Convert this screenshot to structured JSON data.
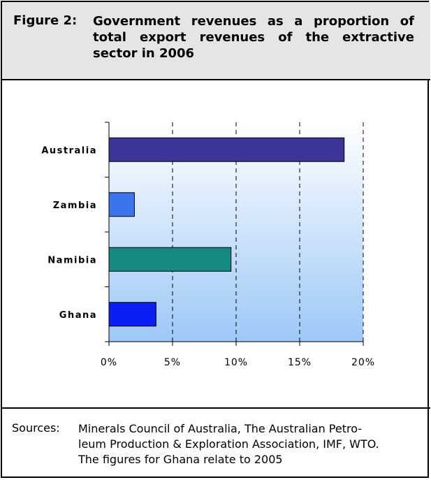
{
  "figure": {
    "label": "Figure 2:",
    "title": "Government revenues as a proportion of total export revenues of the extractive sector in 2006"
  },
  "chart_data": {
    "type": "bar",
    "orientation": "horizontal",
    "categories": [
      "Australia",
      "Zambia",
      "Namibia",
      "Ghana"
    ],
    "values": [
      18.5,
      2.0,
      9.6,
      3.7
    ],
    "bar_colors": [
      "#3a3596",
      "#3c74f0",
      "#148a80",
      "#0a1ef5"
    ],
    "xlim": [
      0,
      20
    ],
    "x_ticks": [
      0,
      5,
      10,
      15,
      20
    ],
    "x_tick_labels": [
      "0%",
      "5%",
      "10%",
      "15%",
      "20%"
    ],
    "grid": "vertical dashed",
    "background": "gradient white to light blue",
    "legend": "none"
  },
  "sources": {
    "label": "Sources:",
    "lines": [
      "Minerals Council of Australia, The Australian Petro-",
      "leum Production & Exploration Association, IMF, WTO.",
      "The figures for Ghana relate to 2005"
    ]
  }
}
